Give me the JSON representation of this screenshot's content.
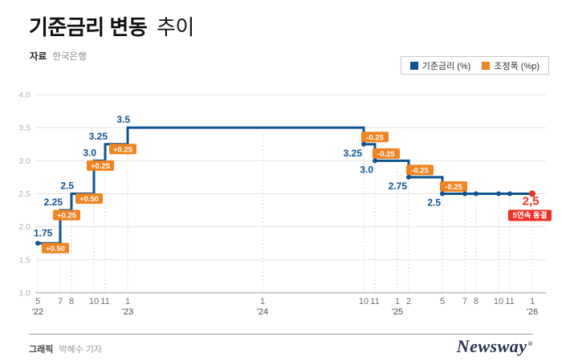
{
  "header": {
    "title_bold": "기준금리 변동",
    "title_light": "추이",
    "source_label": "자료",
    "source_value": "한국은행"
  },
  "legend": {
    "items": [
      {
        "label": "기준금리 (%)",
        "color_key": "primary"
      },
      {
        "label": "조정폭 (%p)",
        "color_key": "accent"
      }
    ]
  },
  "colors": {
    "primary": "#0e538f",
    "accent": "#ef8423",
    "alert": "#ee3124"
  },
  "footer": {
    "credit_label": "그래픽",
    "credit_value": "박혜수 기자",
    "brand": "Newsway",
    "brand_mark": "®"
  },
  "chart_data": {
    "type": "line",
    "step": true,
    "title": "기준금리 변동 추이",
    "source": "한국은행",
    "series_name": "기준금리 (%)",
    "adjustment_series_name": "조정폭 (%p)",
    "ylim": [
      1.0,
      4.0
    ],
    "yticks": [
      1.0,
      1.5,
      2.0,
      2.5,
      3.0,
      3.5,
      4.0
    ],
    "grid": true,
    "legend_position": "top-right",
    "points": [
      {
        "m": 5,
        "y": 2022,
        "year_label": "'22",
        "rate": 1.75,
        "value_label": "1.75",
        "dot": true
      },
      {
        "m": 7,
        "y": 2022,
        "rate": 2.25,
        "value_label": "2.25",
        "change_label": "+0.50"
      },
      {
        "m": 8,
        "y": 2022,
        "rate": 2.5,
        "value_label": "2.5",
        "change_label": "+0.25"
      },
      {
        "m": 10,
        "y": 2022,
        "rate": 3.0,
        "value_label": "3.0",
        "change_label": "+0.50"
      },
      {
        "m": 11,
        "y": 2022,
        "rate": 3.25,
        "value_label": "3.25",
        "change_label": "+0.25"
      },
      {
        "m": 1,
        "y": 2023,
        "year_label": "'23",
        "rate": 3.5,
        "value_label": "3.5",
        "change_label": "+0.25"
      },
      {
        "m": 1,
        "y": 2024,
        "year_label": "'24",
        "rate": 3.5
      },
      {
        "m": 10,
        "y": 2024,
        "rate": 3.25,
        "value_label": "3.25",
        "change_label": "-0.25",
        "dot": true
      },
      {
        "m": 11,
        "y": 2024,
        "rate": 3.0,
        "value_label": "3.0",
        "change_label": "-0.25",
        "dot": true
      },
      {
        "m": 1,
        "y": 2025,
        "year_label": "'25",
        "rate": 3.0
      },
      {
        "m": 2,
        "y": 2025,
        "rate": 2.75,
        "value_label": "2.75",
        "change_label": "-0.25",
        "dot": true
      },
      {
        "m": 5,
        "y": 2025,
        "rate": 2.5,
        "value_label": "2.5",
        "change_label": "-0.25",
        "dot": true
      },
      {
        "m": 7,
        "y": 2025,
        "rate": 2.5,
        "dot": true
      },
      {
        "m": 8,
        "y": 2025,
        "rate": 2.5,
        "dot": true
      },
      {
        "m": 10,
        "y": 2025,
        "rate": 2.5,
        "dot": true
      },
      {
        "m": 11,
        "y": 2025,
        "rate": 2.5,
        "dot": true
      },
      {
        "m": 1,
        "y": 2026,
        "year_label": "'26",
        "rate": 2.5,
        "dot": true,
        "final": true,
        "final_label": "2,5",
        "final_badge": "5연속 동결"
      }
    ]
  }
}
